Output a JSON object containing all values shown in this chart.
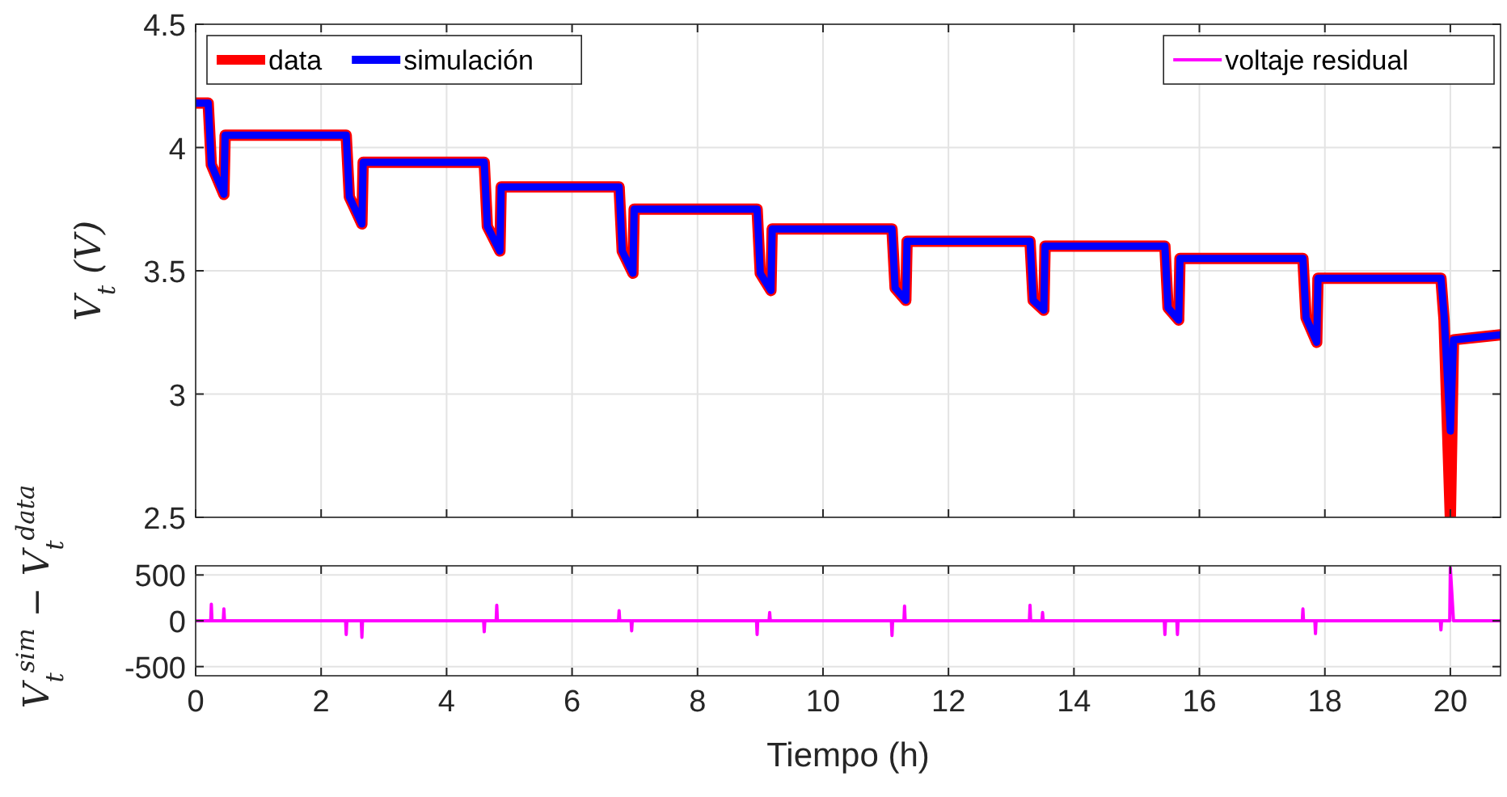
{
  "chart_data": [
    {
      "type": "line",
      "ylabel": "V$_{t}$  (V)",
      "x": [
        0,
        0.2,
        0.25,
        0.45,
        0.47,
        2.4,
        2.45,
        2.65,
        2.67,
        4.6,
        4.65,
        4.85,
        4.87,
        6.75,
        6.8,
        6.97,
        6.99,
        8.95,
        9.0,
        9.17,
        9.19,
        11.1,
        11.15,
        11.32,
        11.34,
        13.3,
        13.35,
        13.52,
        13.54,
        15.45,
        15.5,
        15.67,
        15.69,
        17.65,
        17.7,
        17.87,
        17.89,
        19.85,
        19.9,
        20.0,
        20.05,
        20.8
      ],
      "series": [
        {
          "name": "data",
          "color": "#ff0000",
          "values": [
            4.18,
            4.18,
            3.93,
            3.81,
            4.05,
            4.05,
            3.8,
            3.69,
            3.94,
            3.94,
            3.68,
            3.58,
            3.84,
            3.84,
            3.58,
            3.49,
            3.75,
            3.75,
            3.49,
            3.42,
            3.67,
            3.67,
            3.43,
            3.38,
            3.62,
            3.62,
            3.38,
            3.34,
            3.6,
            3.6,
            3.35,
            3.3,
            3.55,
            3.55,
            3.31,
            3.21,
            3.47,
            3.47,
            3.3,
            2.5,
            3.22,
            3.24
          ]
        },
        {
          "name": "simulación",
          "color": "#0000ff",
          "values": [
            4.18,
            4.18,
            3.93,
            3.81,
            4.05,
            4.05,
            3.8,
            3.69,
            3.94,
            3.94,
            3.68,
            3.58,
            3.84,
            3.84,
            3.58,
            3.49,
            3.75,
            3.75,
            3.49,
            3.42,
            3.67,
            3.67,
            3.43,
            3.38,
            3.62,
            3.62,
            3.38,
            3.34,
            3.6,
            3.6,
            3.35,
            3.3,
            3.55,
            3.55,
            3.31,
            3.21,
            3.47,
            3.47,
            3.32,
            2.85,
            3.22,
            3.24
          ]
        }
      ],
      "xlim": [
        0,
        20.8
      ],
      "xticks": [
        0,
        2,
        4,
        6,
        8,
        10,
        12,
        14,
        16,
        18,
        20
      ],
      "ylim": [
        2.5,
        4.5
      ],
      "yticks": [
        2.5,
        3,
        3.5,
        4,
        4.5
      ],
      "grid": true,
      "legend": "top left",
      "tick_labels": "y"
    },
    {
      "type": "line",
      "xlabel": "Tiempo (h)",
      "ylabel": "V$_{t}$$^{sim}$ − V$_{t}$$^{data}$",
      "series": [
        {
          "name": "voltaje residual",
          "color": "#ff00ff",
          "x": [
            0,
            0.24,
            0.25,
            0.26,
            0.44,
            0.45,
            0.46,
            2.39,
            2.4,
            2.41,
            2.64,
            2.65,
            2.66,
            4.59,
            4.6,
            4.61,
            4.79,
            4.8,
            4.81,
            6.74,
            6.75,
            6.76,
            6.94,
            6.95,
            6.96,
            8.94,
            8.95,
            8.96,
            9.14,
            9.15,
            9.16,
            11.09,
            11.1,
            11.11,
            11.29,
            11.3,
            11.31,
            13.29,
            13.3,
            13.31,
            13.49,
            13.5,
            13.51,
            15.44,
            15.45,
            15.46,
            15.64,
            15.65,
            15.66,
            17.64,
            17.65,
            17.66,
            17.84,
            17.85,
            17.86,
            19.84,
            19.85,
            19.86,
            19.99,
            20.0,
            20.05,
            20.8
          ],
          "values": [
            0,
            0,
            180,
            0,
            0,
            130,
            0,
            0,
            -150,
            0,
            0,
            -180,
            0,
            0,
            -120,
            0,
            0,
            170,
            0,
            0,
            110,
            0,
            0,
            -110,
            0,
            0,
            -150,
            0,
            0,
            90,
            0,
            0,
            -160,
            0,
            0,
            160,
            0,
            0,
            170,
            0,
            0,
            90,
            0,
            0,
            -150,
            0,
            0,
            -150,
            0,
            0,
            130,
            0,
            0,
            -140,
            0,
            0,
            -100,
            0,
            0,
            580,
            0,
            0
          ]
        }
      ],
      "xlim": [
        0,
        20.8
      ],
      "xticks": [
        0,
        2,
        4,
        6,
        8,
        10,
        12,
        14,
        16,
        18,
        20
      ],
      "ylim": [
        -600,
        600
      ],
      "yticks": [
        -500,
        0,
        500
      ],
      "grid": true,
      "legend": "top right"
    }
  ]
}
